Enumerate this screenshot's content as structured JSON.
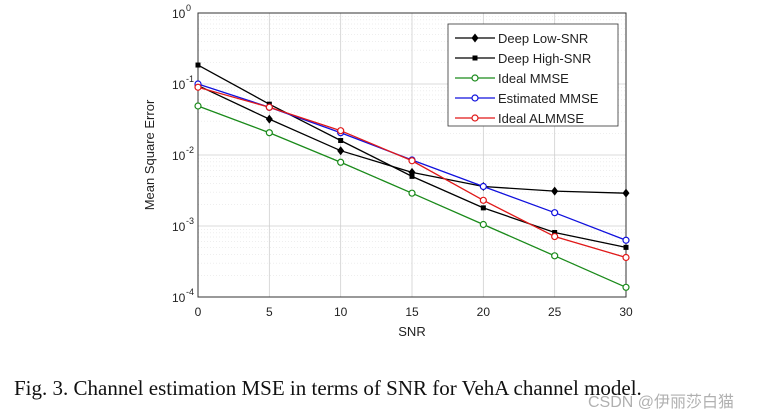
{
  "chart_data": {
    "type": "line",
    "title": "",
    "xlabel": "SNR",
    "ylabel": "Mean Square Error",
    "x": [
      0,
      5,
      10,
      15,
      20,
      25,
      30
    ],
    "xlim": [
      0,
      30
    ],
    "ylim": [
      0.0001,
      1
    ],
    "yscale": "log",
    "xticks": [
      "0",
      "5",
      "10",
      "15",
      "20",
      "25",
      "30"
    ],
    "yticks": [
      {
        "base": "10",
        "exp": "0"
      },
      {
        "base": "10",
        "exp": "-1"
      },
      {
        "base": "10",
        "exp": "-2"
      },
      {
        "base": "10",
        "exp": "-3"
      },
      {
        "base": "10",
        "exp": "-4"
      }
    ],
    "grid": true,
    "legend_position": "top-right",
    "series": [
      {
        "name": "Deep Low-SNR",
        "color": "#000000",
        "marker": "diamond-filled",
        "values": [
          0.095,
          0.032,
          0.0115,
          0.0057,
          0.0036,
          0.0031,
          0.0029
        ]
      },
      {
        "name": "Deep High-SNR",
        "color": "#000000",
        "marker": "square-filled",
        "values": [
          0.185,
          0.052,
          0.016,
          0.005,
          0.0018,
          0.00081,
          0.0005
        ]
      },
      {
        "name": "Ideal MMSE",
        "color": "#1a8a1a",
        "marker": "circle-open",
        "values": [
          0.049,
          0.0206,
          0.0079,
          0.0029,
          0.00105,
          0.00038,
          0.000137
        ]
      },
      {
        "name": "Estimated MMSE",
        "color": "#1010dd",
        "marker": "circle-open",
        "values": [
          0.1,
          0.047,
          0.0206,
          0.0085,
          0.0036,
          0.00154,
          0.00063
        ]
      },
      {
        "name": "Ideal ALMMSE",
        "color": "#e01818",
        "marker": "circle-open",
        "values": [
          0.09,
          0.047,
          0.022,
          0.0083,
          0.0023,
          0.00071,
          0.00036
        ]
      }
    ]
  },
  "caption": "Fig. 3.   Channel estimation MSE in terms of SNR for VehA channel model.",
  "watermark": "CSDN @伊丽莎白猫"
}
